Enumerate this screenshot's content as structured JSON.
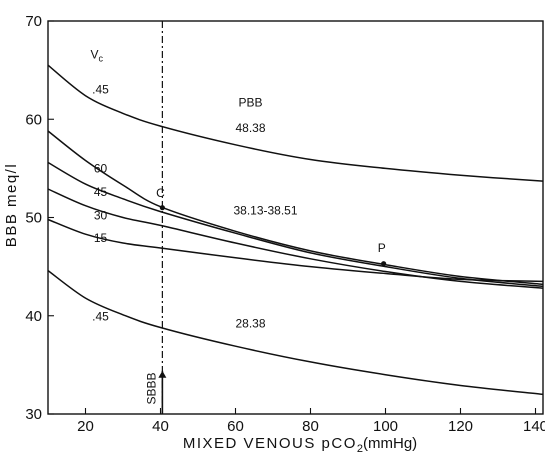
{
  "chart_data": {
    "type": "line",
    "xlabel_main": "MIXED VENOUS pCO",
    "xlabel_sub": "2",
    "xlabel_unit": "(mmHg)",
    "ylabel": "BBB meq/l",
    "xlim": [
      10,
      142
    ],
    "ylim": [
      30,
      70
    ],
    "x_ticks": [
      20,
      40,
      60,
      80,
      100,
      120,
      140
    ],
    "y_ticks": [
      30,
      40,
      50,
      60,
      70
    ],
    "grid": false,
    "series": [
      {
        "x": [
          10,
          20,
          30,
          40,
          60,
          80,
          100,
          120,
          142
        ],
        "y": [
          65.5,
          62.4,
          60.6,
          59.3,
          57.4,
          55.9,
          55.0,
          54.3,
          53.7
        ]
      },
      {
        "x": [
          10,
          20,
          30,
          40,
          60,
          80,
          100,
          120,
          142
        ],
        "y": [
          58.8,
          55.8,
          53.3,
          51.1,
          48.6,
          46.6,
          45.2,
          44.0,
          43.2
        ]
      },
      {
        "x": [
          10,
          20,
          30,
          40,
          60,
          80,
          100,
          120,
          142
        ],
        "y": [
          55.6,
          53.4,
          51.9,
          50.6,
          48.4,
          46.4,
          45.0,
          43.8,
          43.0
        ]
      },
      {
        "x": [
          10,
          20,
          30,
          40,
          60,
          80,
          100,
          120,
          142
        ],
        "y": [
          52.9,
          51.2,
          50.0,
          49.2,
          47.4,
          45.8,
          44.5,
          43.5,
          42.8
        ]
      },
      {
        "x": [
          10,
          20,
          30,
          40,
          60,
          80,
          100,
          120,
          142
        ],
        "y": [
          49.8,
          48.3,
          47.4,
          46.9,
          45.9,
          45.0,
          44.3,
          43.7,
          43.5
        ]
      },
      {
        "x": [
          10,
          20,
          30,
          40,
          60,
          80,
          100,
          120,
          142
        ],
        "y": [
          44.6,
          41.8,
          40.1,
          38.8,
          36.9,
          35.3,
          34.0,
          32.9,
          32.0
        ]
      }
    ],
    "annotations": [
      {
        "text": "PBB",
        "x": 64,
        "y": 61.3
      },
      {
        "text": "48.38",
        "x": 64,
        "y": 58.7
      },
      {
        "text": "38.13-38.51",
        "x": 68,
        "y": 50.3
      },
      {
        "text": "28.38",
        "x": 64,
        "y": 38.8
      },
      {
        "text": ".45",
        "x": 24,
        "y": 62.6
      },
      {
        "text": "60",
        "x": 24,
        "y": 54.6
      },
      {
        "text": "45",
        "x": 24,
        "y": 52.2
      },
      {
        "text": "30",
        "x": 24,
        "y": 49.8
      },
      {
        "text": "15",
        "x": 24,
        "y": 47.5
      },
      {
        "text": ".45",
        "x": 24,
        "y": 39.5
      },
      {
        "text": "C",
        "x": 40,
        "y": 52.1
      },
      {
        "text": "P",
        "x": 99,
        "y": 46.5
      }
    ],
    "vc_label_main": "V",
    "vc_label_sub": "c",
    "vc_label_x": 23,
    "vc_label_y": 66.2,
    "points": [
      {
        "name": "C",
        "x": 40.5,
        "y": 51.0
      },
      {
        "name": "P",
        "x": 99.5,
        "y": 45.3
      }
    ],
    "sbbb_label": "SBBB",
    "sbbb_x": 40.5
  }
}
